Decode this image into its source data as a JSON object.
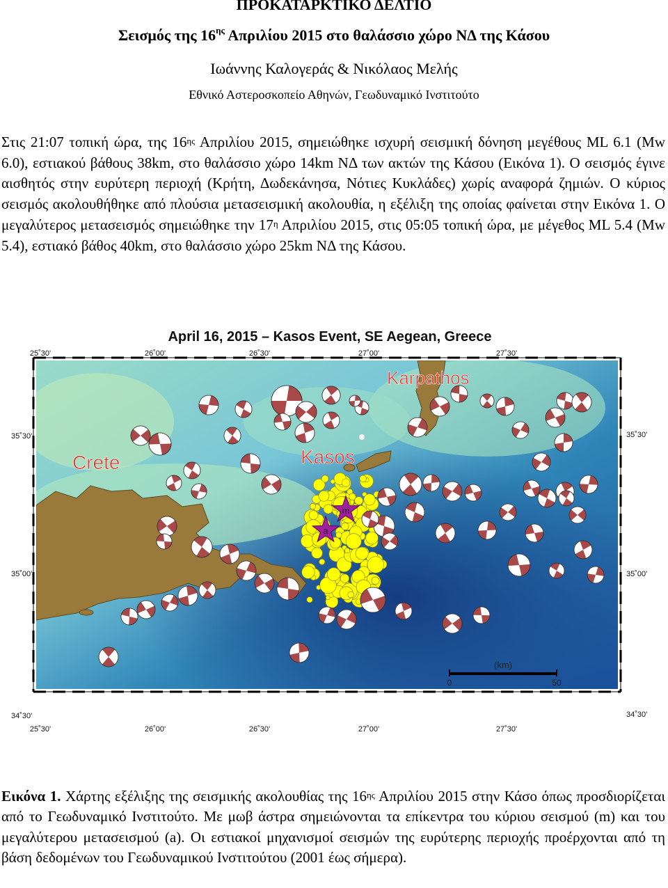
{
  "document": {
    "label": "ΠΡΟΚΑΤΑΡΚΤΙΚΟ ΔΕΛΤΙΟ",
    "title_pre": "Σεισμός της 16",
    "title_sup": "ης",
    "title_post": " Απριλίου 2015 στο θαλάσσιο χώρο ΝΔ της Κάσου",
    "authors": "Ιωάννης Καλογεράς & Νικόλαος Μελής",
    "affiliation": "Εθνικό Αστεροσκοπείο Αθηνών, Γεωδυναμικό Ινστιτούτο"
  },
  "body": {
    "p1a": "Στις 21:07 τοπική ώρα, της 16",
    "p1_sup": "ης",
    "p1b": " Απριλίου 2015, σημειώθηκε ισχυρή σεισμική δόνηση μεγέθους ML 6.1 (Mw 6.0), εστιακού βάθους 38km, στο θαλάσσιο χώρο 14km ΝΔ των ακτών της Κάσου (Εικόνα 1). Ο σεισμός έγινε αισθητός στην ευρύτερη περιοχή (Κρήτη, Δωδεκάνησα, Νότιες Κυκλάδες) χωρίς αναφορά ζημιών. Ο κύριος σεισμός ακολουθήθηκε από πλούσια μετασεισμική ακολουθία, η εξέλιξη της οποίας φαίνεται στην Εικόνα 1. Ο μεγαλύτερος μετασεισμός σημειώθηκε την 17",
    "p1_sup2": "η",
    "p1c": " Απριλίου 2015, στις 05:05 τοπική ώρα, με μέγεθος ML 5.4 (Mw 5.4), εστιακό βάθος 40km, στο θαλάσσιο χώρο 25km ΝΔ της Κάσου."
  },
  "map": {
    "title": "April 16, 2015 – Kasos Event, SE Aegean, Greece",
    "lon_ticks": [
      "25˚30'",
      "26˚00'",
      "26˚30'",
      "27˚00'",
      "27˚30'"
    ],
    "lat_ticks": [
      "35˚30'",
      "35˚00'",
      "34˚30'"
    ],
    "labels": {
      "crete": "Crete",
      "kasos": "Kasos",
      "karpathos": "Karpathos",
      "mainshock": "m",
      "aftershock": "a"
    },
    "scale": {
      "unit": "(km)",
      "start": "0",
      "end": "50"
    },
    "colors": {
      "island": "#9a7a3a",
      "beachball": "#a84848",
      "aftershocks": "#ffff00",
      "stars": "#a020a0",
      "labels": "#e0302a"
    }
  },
  "caption": {
    "label": "Εικόνα 1.",
    "t1": " Χάρτης εξέλιξης της σεισμικής ακολουθίας της 16",
    "sup": "ης",
    "t2": " Απριλίου 2015 στην Κάσο όπως προσδιορίζεται από το Γεωδυναμικό Ινστιτούτο. Με μωβ άστρα σημειώνονται τα επίκεντρα του κύριου σεισμού (m) και του μεγαλύτερου μετασεισμού (a). Οι εστιακοί μηχανισμοί σεισμών της ευρύτερης περιοχής προέρχονται από τη βάση δεδομένων του Γεωδυναμικού Ινστιτούτου (2001 έως σήμερα)."
  }
}
